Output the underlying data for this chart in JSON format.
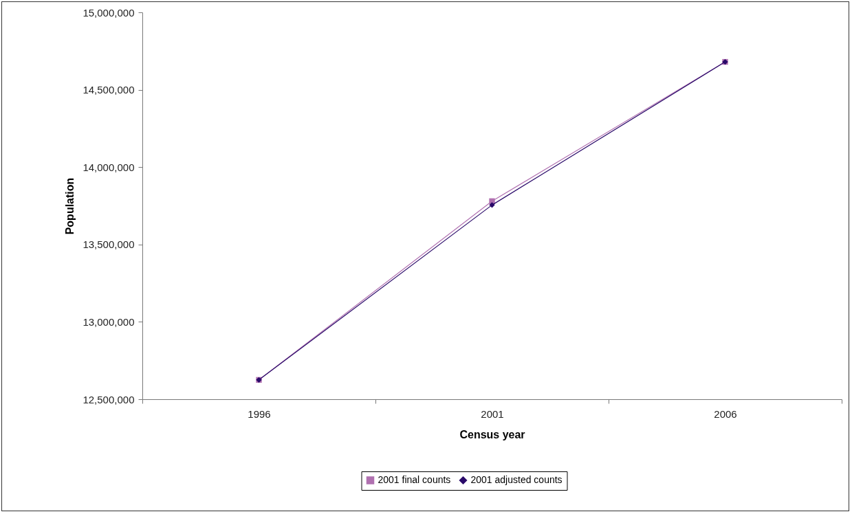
{
  "chart_data": {
    "type": "line",
    "xlabel": "Census year",
    "ylabel": "Population",
    "categories": [
      "1996",
      "2001",
      "2006"
    ],
    "series": [
      {
        "name": "2001 final counts",
        "color": "#b070b0",
        "marker": "square",
        "values": [
          12625000,
          13780000,
          14680000
        ]
      },
      {
        "name": "2001 adjusted counts",
        "color": "#2a0a6a",
        "marker": "diamond",
        "values": [
          12625000,
          13755000,
          14680000
        ]
      }
    ],
    "ylim": [
      12500000,
      15000000
    ],
    "yticks": [
      {
        "value": 12500000,
        "label": "12,500,000"
      },
      {
        "value": 13000000,
        "label": "13,000,000"
      },
      {
        "value": 13500000,
        "label": "13,500,000"
      },
      {
        "value": 14000000,
        "label": "14,000,000"
      },
      {
        "value": 14500000,
        "label": "14,500,000"
      },
      {
        "value": 15000000,
        "label": "15,000,000"
      }
    ],
    "grid": false,
    "legend": "bottom"
  }
}
